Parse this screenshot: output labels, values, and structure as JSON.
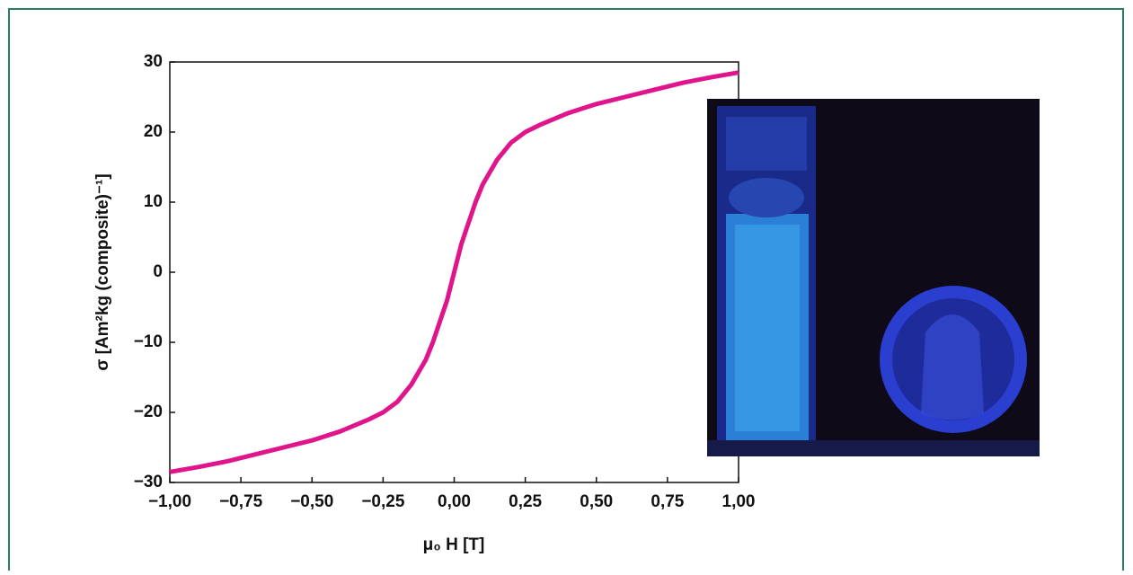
{
  "chart_data": {
    "type": "line",
    "x": [
      -1,
      -0.9,
      -0.8,
      -0.7,
      -0.6,
      -0.5,
      -0.4,
      -0.3,
      -0.25,
      -0.2,
      -0.15,
      -0.1,
      -0.075,
      -0.05,
      -0.025,
      0,
      0.025,
      0.05,
      0.075,
      0.1,
      0.15,
      0.2,
      0.25,
      0.3,
      0.4,
      0.5,
      0.6,
      0.7,
      0.8,
      0.9,
      1
    ],
    "values": [
      -28.5,
      -27.8,
      -27,
      -26,
      -25,
      -24,
      -22.7,
      -21,
      -20,
      -18.5,
      -16,
      -12.5,
      -10,
      -7,
      -4,
      0,
      4,
      7,
      10,
      12.5,
      16,
      18.5,
      20,
      21,
      22.7,
      24,
      25,
      26,
      27,
      27.8,
      28.5
    ],
    "color": "#e0158c",
    "xlim": [
      -1,
      1
    ],
    "xticks": [
      {
        "value": -1,
        "label": "−1,00"
      },
      {
        "value": -0.75,
        "label": "−0,75"
      },
      {
        "value": -0.5,
        "label": "−0,50"
      },
      {
        "value": -0.25,
        "label": "−0,25"
      },
      {
        "value": 0,
        "label": "0,00"
      },
      {
        "value": 0.25,
        "label": "0,25"
      },
      {
        "value": 0.5,
        "label": "0,50"
      },
      {
        "value": 0.75,
        "label": "0,75"
      },
      {
        "value": 1,
        "label": "1,00"
      }
    ],
    "ylim": [
      -30,
      30
    ],
    "yticks": [
      {
        "value": -30,
        "label": "−30"
      },
      {
        "value": -20,
        "label": "−20"
      },
      {
        "value": -10,
        "label": "−10"
      },
      0,
      10,
      20,
      30
    ],
    "xlabel": "μ₀ H [T]",
    "ylabel": "σ [Am²kg (composite)⁻¹]"
  }
}
